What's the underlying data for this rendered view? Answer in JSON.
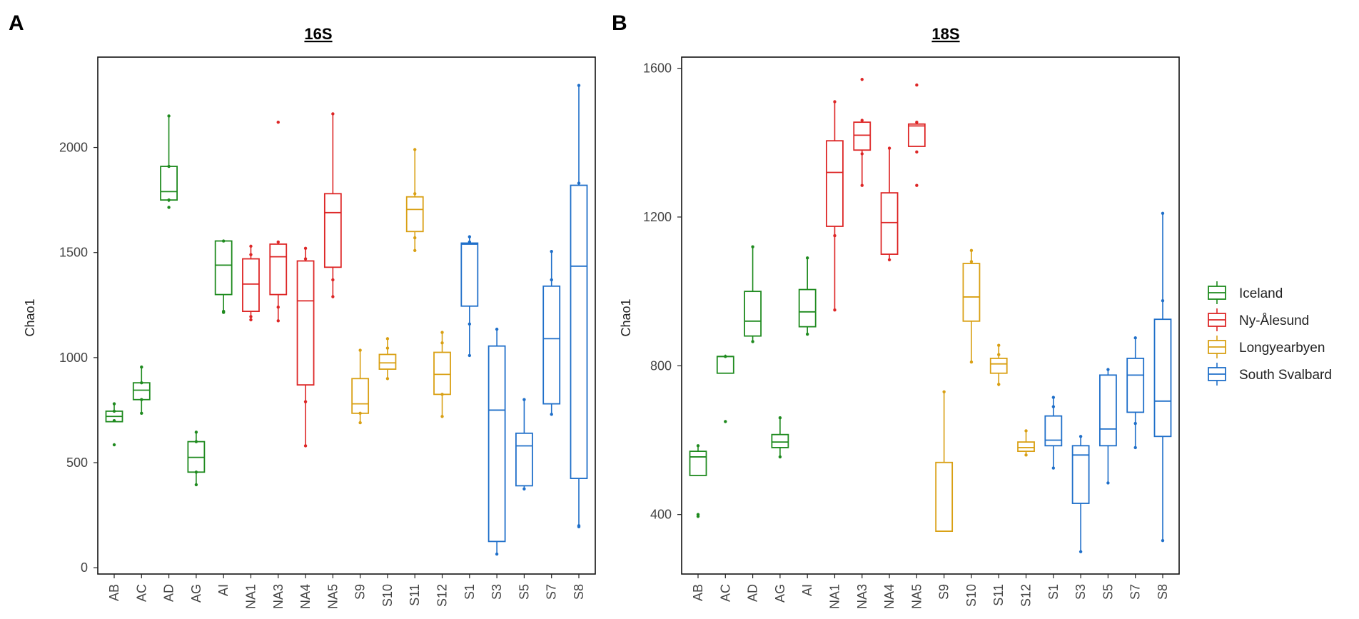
{
  "panels": {
    "a": {
      "letter": "A"
    },
    "b": {
      "letter": "B"
    }
  },
  "colors": {
    "Iceland": "#1e8a1e",
    "Ny-Ålesund": "#dd2626",
    "Longyearbyen": "#d9a014",
    "South Svalbard": "#1f6fc9"
  },
  "legend": {
    "items": [
      "Iceland",
      "Ny-Ålesund",
      "Longyearbyen",
      "South Svalbard"
    ]
  },
  "chart_data": [
    {
      "type": "box",
      "title": "16S",
      "xlabel": "",
      "ylabel": "Chao1",
      "ylim": [
        -30,
        2430
      ],
      "yticks": [
        0,
        500,
        1000,
        1500,
        2000
      ],
      "categories": [
        "AB",
        "AC",
        "AD",
        "AG",
        "AI",
        "NA1",
        "NA3",
        "NA4",
        "NA5",
        "S9",
        "S10",
        "S11",
        "S12",
        "S1",
        "S3",
        "S5",
        "S7",
        "S8"
      ],
      "groups": [
        "Iceland",
        "Iceland",
        "Iceland",
        "Iceland",
        "Iceland",
        "Ny-Ålesund",
        "Ny-Ålesund",
        "Ny-Ålesund",
        "Ny-Ålesund",
        "Longyearbyen",
        "Longyearbyen",
        "Longyearbyen",
        "Longyearbyen",
        "South Svalbard",
        "South Svalbard",
        "South Svalbard",
        "South Svalbard",
        "South Svalbard"
      ],
      "boxes": [
        {
          "lower": 700,
          "q1": 695,
          "median": 720,
          "q3": 745,
          "upper": 780,
          "points": [
            780,
            745,
            700,
            585
          ]
        },
        {
          "lower": 735,
          "q1": 800,
          "median": 845,
          "q3": 880,
          "upper": 955,
          "points": [
            955,
            880,
            800,
            735
          ]
        },
        {
          "lower": 1740,
          "q1": 1750,
          "median": 1790,
          "q3": 1910,
          "upper": 2150,
          "points": [
            2150,
            1910,
            1750,
            1715
          ]
        },
        {
          "lower": 395,
          "q1": 455,
          "median": 525,
          "q3": 600,
          "upper": 645,
          "points": [
            645,
            600,
            455,
            395
          ]
        },
        {
          "lower": 1220,
          "q1": 1300,
          "median": 1440,
          "q3": 1555,
          "upper": 1555,
          "points": [
            1555,
            1220,
            1215
          ]
        },
        {
          "lower": 1180,
          "q1": 1220,
          "median": 1350,
          "q3": 1470,
          "upper": 1530,
          "points": [
            1530,
            1490,
            1195,
            1180
          ]
        },
        {
          "lower": 1175,
          "q1": 1300,
          "median": 1480,
          "q3": 1540,
          "upper": 1555,
          "points": [
            2120,
            1550,
            1240,
            1175
          ]
        },
        {
          "lower": 580,
          "q1": 870,
          "median": 1270,
          "q3": 1460,
          "upper": 1520,
          "points": [
            1520,
            1470,
            790,
            580
          ]
        },
        {
          "lower": 1290,
          "q1": 1430,
          "median": 1690,
          "q3": 1780,
          "upper": 2160,
          "points": [
            2160,
            1370,
            1290
          ]
        },
        {
          "lower": 690,
          "q1": 735,
          "median": 780,
          "q3": 900,
          "upper": 1035,
          "points": [
            1035,
            735,
            690
          ]
        },
        {
          "lower": 900,
          "q1": 945,
          "median": 975,
          "q3": 1015,
          "upper": 1090,
          "points": [
            1090,
            1045,
            900
          ]
        },
        {
          "lower": 1510,
          "q1": 1600,
          "median": 1705,
          "q3": 1765,
          "upper": 1990,
          "points": [
            1990,
            1780,
            1570,
            1510
          ]
        },
        {
          "lower": 720,
          "q1": 825,
          "median": 920,
          "q3": 1025,
          "upper": 1120,
          "points": [
            1120,
            1070,
            825,
            720
          ]
        },
        {
          "lower": 1010,
          "q1": 1245,
          "median": 1540,
          "q3": 1545,
          "upper": 1575,
          "points": [
            1575,
            1550,
            1160,
            1010
          ]
        },
        {
          "lower": 65,
          "q1": 125,
          "median": 750,
          "q3": 1055,
          "upper": 1135,
          "points": [
            1135,
            65
          ]
        },
        {
          "lower": 375,
          "q1": 390,
          "median": 580,
          "q3": 640,
          "upper": 800,
          "points": [
            800,
            375
          ]
        },
        {
          "lower": 730,
          "q1": 780,
          "median": 1090,
          "q3": 1340,
          "upper": 1505,
          "points": [
            1505,
            1370,
            730
          ]
        },
        {
          "lower": 195,
          "q1": 425,
          "median": 1435,
          "q3": 1820,
          "upper": 2295,
          "points": [
            2295,
            1830,
            200,
            195
          ]
        }
      ]
    },
    {
      "type": "box",
      "title": "18S",
      "xlabel": "",
      "ylabel": "Chao1",
      "ylim": [
        240,
        1630
      ],
      "yticks": [
        400,
        800,
        1200,
        1600
      ],
      "categories": [
        "AB",
        "AC",
        "AD",
        "AG",
        "AI",
        "NA1",
        "NA3",
        "NA4",
        "NA5",
        "S9",
        "S10",
        "S11",
        "S12",
        "S1",
        "S3",
        "S5",
        "S7",
        "S8"
      ],
      "groups": [
        "Iceland",
        "Iceland",
        "Iceland",
        "Iceland",
        "Iceland",
        "Ny-Ålesund",
        "Ny-Ålesund",
        "Ny-Ålesund",
        "Ny-Ålesund",
        "Longyearbyen",
        "Longyearbyen",
        "Longyearbyen",
        "Longyearbyen",
        "South Svalbard",
        "South Svalbard",
        "South Svalbard",
        "South Svalbard",
        "South Svalbard"
      ],
      "boxes": [
        {
          "lower": 505,
          "q1": 505,
          "median": 555,
          "q3": 570,
          "upper": 585,
          "points": [
            585,
            400,
            395
          ]
        },
        {
          "lower": 780,
          "q1": 780,
          "median": 825,
          "q3": 825,
          "upper": 830,
          "points": [
            825,
            650
          ]
        },
        {
          "lower": 865,
          "q1": 880,
          "median": 920,
          "q3": 1000,
          "upper": 1120,
          "points": [
            1120,
            865
          ]
        },
        {
          "lower": 555,
          "q1": 580,
          "median": 595,
          "q3": 615,
          "upper": 660,
          "points": [
            660,
            555
          ]
        },
        {
          "lower": 885,
          "q1": 905,
          "median": 945,
          "q3": 1005,
          "upper": 1090,
          "points": [
            1090,
            885
          ]
        },
        {
          "lower": 950,
          "q1": 1175,
          "median": 1320,
          "q3": 1405,
          "upper": 1510,
          "points": [
            1510,
            1150,
            950
          ]
        },
        {
          "lower": 1285,
          "q1": 1380,
          "median": 1420,
          "q3": 1455,
          "upper": 1460,
          "points": [
            1570,
            1460,
            1370,
            1285
          ]
        },
        {
          "lower": 1085,
          "q1": 1100,
          "median": 1185,
          "q3": 1265,
          "upper": 1385,
          "points": [
            1385,
            1085
          ]
        },
        {
          "lower": 1390,
          "q1": 1390,
          "median": 1445,
          "q3": 1450,
          "upper": 1455,
          "points": [
            1555,
            1455,
            1375,
            1285
          ]
        },
        {
          "lower": 355,
          "q1": 355,
          "median": 355,
          "q3": 540,
          "upper": 730,
          "points": [
            730
          ]
        },
        {
          "lower": 810,
          "q1": 920,
          "median": 985,
          "q3": 1075,
          "upper": 1110,
          "points": [
            1110,
            1080,
            810
          ]
        },
        {
          "lower": 745,
          "q1": 780,
          "median": 805,
          "q3": 820,
          "upper": 855,
          "points": [
            855,
            830,
            750
          ]
        },
        {
          "lower": 560,
          "q1": 570,
          "median": 580,
          "q3": 595,
          "upper": 625,
          "points": [
            625,
            560
          ]
        },
        {
          "lower": 525,
          "q1": 585,
          "median": 600,
          "q3": 665,
          "upper": 715,
          "points": [
            715,
            690,
            525
          ]
        },
        {
          "lower": 300,
          "q1": 430,
          "median": 560,
          "q3": 585,
          "upper": 610,
          "points": [
            610,
            300
          ]
        },
        {
          "lower": 485,
          "q1": 585,
          "median": 630,
          "q3": 775,
          "upper": 790,
          "points": [
            790,
            485
          ]
        },
        {
          "lower": 580,
          "q1": 675,
          "median": 775,
          "q3": 820,
          "upper": 875,
          "points": [
            875,
            645,
            580
          ]
        },
        {
          "lower": 330,
          "q1": 610,
          "median": 705,
          "q3": 925,
          "upper": 1210,
          "points": [
            1210,
            975,
            330
          ]
        }
      ]
    }
  ]
}
